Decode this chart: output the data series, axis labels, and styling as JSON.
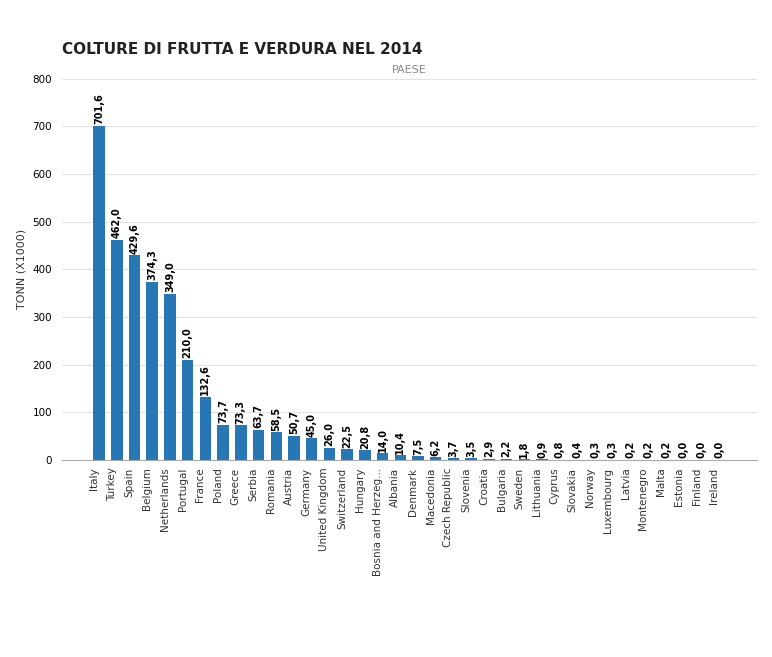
{
  "title": "COLTURE DI FRUTTA E VERDURA NEL 2014",
  "xlabel": "PAESE",
  "ylabel": "TONN (X1000)",
  "bar_color": "#2777b4",
  "categories": [
    "Italy",
    "Turkey",
    "Spain",
    "Belgium",
    "Netherlands",
    "Portugal",
    "France",
    "Poland",
    "Greece",
    "Serbia",
    "Romania",
    "Austria",
    "Germany",
    "United Kingdom",
    "Switzerland",
    "Hungary",
    "Bosnia and Herzeg...",
    "Albania",
    "Denmark",
    "Macedonia",
    "Czech Republic",
    "Slovenia",
    "Croatia",
    "Bulgaria",
    "Sweden",
    "Lithuania",
    "Cyprus",
    "Slovakia",
    "Norway",
    "Luxembourg",
    "Latvia",
    "Montenegro",
    "Malta",
    "Estonia",
    "Finland",
    "Ireland"
  ],
  "values": [
    701.6,
    462.0,
    429.6,
    374.3,
    349.0,
    210.0,
    132.6,
    73.7,
    73.3,
    63.7,
    58.5,
    50.7,
    45.0,
    26.0,
    22.5,
    20.8,
    14.0,
    10.4,
    7.5,
    6.2,
    3.7,
    3.5,
    2.9,
    2.2,
    1.8,
    0.9,
    0.8,
    0.4,
    0.3,
    0.3,
    0.2,
    0.2,
    0.2,
    0.0,
    0.0,
    0.0
  ],
  "label_format": [
    "701,6",
    "462,0",
    "429,6",
    "374,3",
    "349,0",
    "210,0",
    "132,6",
    "73,7",
    "73,3",
    "63,7",
    "58,5",
    "50,7",
    "45,0",
    "26,0",
    "22,5",
    "20,8",
    "14,0",
    "10,4",
    "7,5",
    "6,2",
    "3,7",
    "3,5",
    "2,9",
    "2,2",
    "1,8",
    "0,9",
    "0,8",
    "0,4",
    "0,3",
    "0,3",
    "0,2",
    "0,2",
    "0,2",
    "0,0",
    "0,0",
    "0,0"
  ],
  "ylim": [
    0,
    800
  ],
  "yticks": [
    0,
    100,
    200,
    300,
    400,
    500,
    600,
    700,
    800
  ],
  "bg_color": "#ffffff",
  "title_fontsize": 11,
  "tick_fontsize": 7.5,
  "ylabel_fontsize": 8,
  "xlabel_fontsize": 8,
  "xlabel_color": "#888888",
  "bar_label_fontsize": 7,
  "bar_width": 0.65
}
